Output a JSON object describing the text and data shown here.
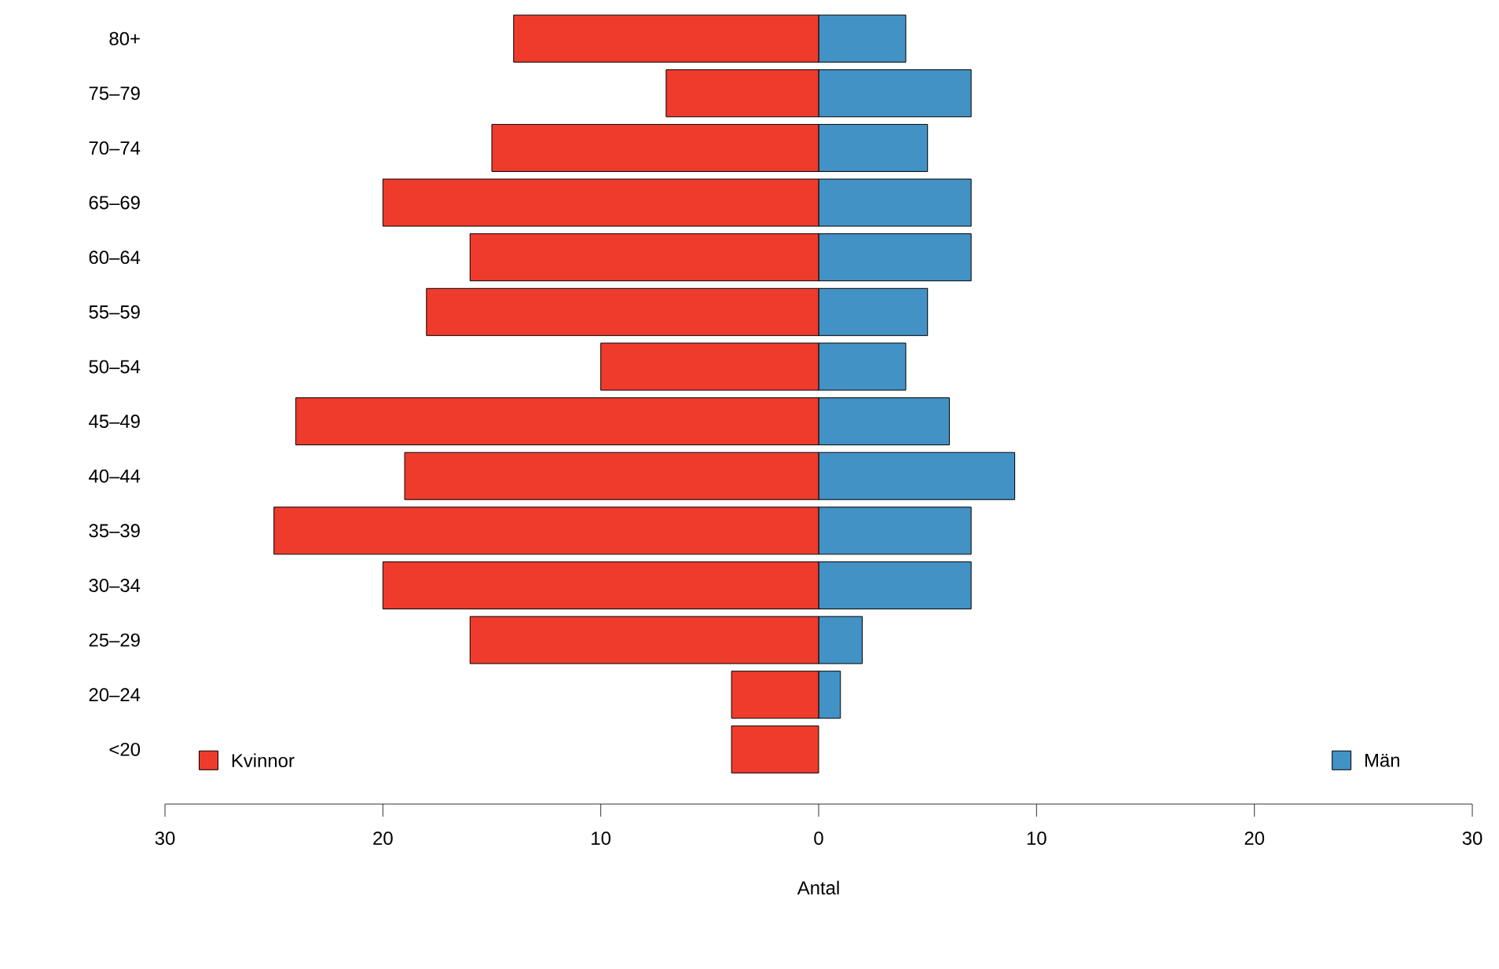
{
  "chart_data": {
    "type": "bar",
    "orientation": "horizontal",
    "xlabel": "Antal",
    "categories": [
      "80+",
      "75–79",
      "70–74",
      "65–69",
      "60–64",
      "55–59",
      "50–54",
      "45–49",
      "40–44",
      "35–39",
      "30–34",
      "25–29",
      "20–24",
      "<20"
    ],
    "series": [
      {
        "name": "Kvinnor",
        "color": "#ef3b2c",
        "values": [
          -14,
          -7,
          -15,
          -20,
          -16,
          -18,
          -10,
          -24,
          -19,
          -25,
          -20,
          -16,
          -4,
          -4
        ]
      },
      {
        "name": "Män",
        "color": "#4292c6",
        "values": [
          4,
          7,
          5,
          7,
          7,
          5,
          4,
          6,
          9,
          7,
          7,
          2,
          1,
          null
        ]
      }
    ],
    "xlim": [
      -30,
      30
    ],
    "xticks": [
      {
        "value": -30,
        "label": "30"
      },
      {
        "value": -20,
        "label": "20"
      },
      {
        "value": -10,
        "label": "10"
      },
      0,
      10,
      20,
      30
    ],
    "stacked": true,
    "legend": "bottom"
  }
}
